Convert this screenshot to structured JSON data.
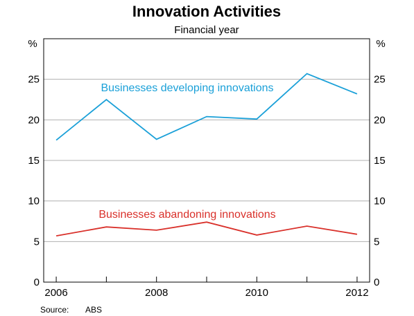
{
  "chart_data": {
    "type": "line",
    "title": "Innovation Activities",
    "subtitle": "Financial year",
    "y_unit_left": "%",
    "y_unit_right": "%",
    "x": [
      2006,
      2007,
      2008,
      2009,
      2010,
      2011,
      2012
    ],
    "x_ticks": [
      2006,
      2008,
      2010,
      2012
    ],
    "xlim": [
      2005.75,
      2012.25
    ],
    "ylim": [
      0,
      30
    ],
    "y_ticks": [
      0,
      5,
      10,
      15,
      20,
      25
    ],
    "grid": true,
    "series": [
      {
        "name": "Businesses developing innovations",
        "color": "#1aa0d8",
        "values": [
          17.5,
          22.5,
          17.6,
          20.4,
          20.1,
          25.7,
          23.2
        ]
      },
      {
        "name": "Businesses abandoning innovations",
        "color": "#d9302a",
        "values": [
          5.7,
          6.8,
          6.4,
          7.4,
          5.8,
          6.9,
          5.9
        ]
      }
    ],
    "source_label": "Source:",
    "source_value": "ABS"
  }
}
